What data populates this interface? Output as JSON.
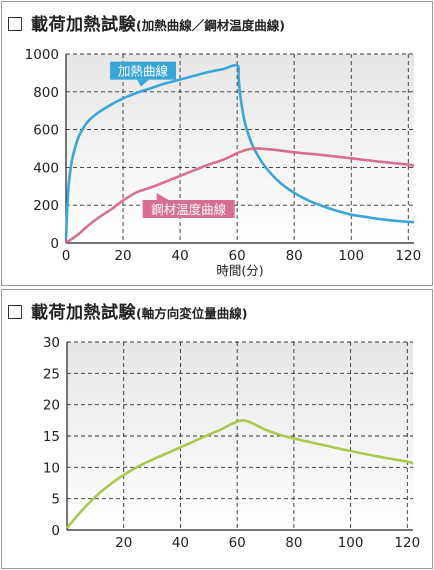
{
  "charts": [
    {
      "title_main": "載荷加熱試験",
      "title_sub": "(加熱曲線／鋼材温度曲線)"
    },
    {
      "title_main": "載荷加熱試験",
      "title_sub": "(軸方向変位量曲線)"
    }
  ],
  "chart_data": [
    {
      "type": "line",
      "title": "載荷加熱試験(加熱曲線／鋼材温度曲線)",
      "xlabel": "時間(分)",
      "ylabel": "",
      "xlim": [
        0,
        122
      ],
      "ylim": [
        0,
        1000
      ],
      "xticks": [
        0,
        20,
        40,
        60,
        80,
        100,
        120
      ],
      "yticks": [
        0,
        200,
        400,
        600,
        800,
        1000
      ],
      "grid": true,
      "series": [
        {
          "name": "加熱曲線",
          "color": "#3aa6d8",
          "x": [
            0,
            0.5,
            1,
            2,
            3,
            4,
            5,
            7,
            10,
            15,
            20,
            25,
            30,
            35,
            40,
            45,
            50,
            55,
            60,
            60.5,
            61,
            62,
            63,
            65,
            67,
            70,
            75,
            80,
            85,
            90,
            95,
            100,
            105,
            110,
            115,
            120,
            122
          ],
          "y": [
            20,
            200,
            320,
            430,
            495,
            545,
            580,
            630,
            675,
            725,
            765,
            795,
            820,
            845,
            865,
            885,
            905,
            920,
            940,
            880,
            790,
            690,
            620,
            530,
            470,
            400,
            320,
            265,
            225,
            195,
            170,
            150,
            138,
            127,
            118,
            112,
            110
          ]
        },
        {
          "name": "鋼材温度曲線",
          "color": "#d86e92",
          "x": [
            0,
            2,
            5,
            8,
            12,
            16,
            20,
            25,
            30,
            35,
            40,
            45,
            50,
            55,
            60,
            63,
            66,
            70,
            75,
            80,
            90,
            100,
            110,
            120,
            122
          ],
          "y": [
            5,
            20,
            55,
            95,
            140,
            180,
            225,
            270,
            295,
            325,
            355,
            385,
            415,
            440,
            475,
            492,
            500,
            497,
            490,
            480,
            465,
            448,
            430,
            415,
            408
          ]
        }
      ],
      "annotations": [
        {
          "text": "加熱曲線",
          "color": "#3aa6d8",
          "x": 27,
          "y": 912
        },
        {
          "text": "鋼材温度曲線",
          "color": "#d86e92",
          "x": 43,
          "y": 180
        }
      ]
    },
    {
      "type": "line",
      "title": "載荷加熱試験(軸方向変位量曲線)",
      "xlabel": "",
      "ylabel": "",
      "xlim": [
        0,
        122
      ],
      "ylim": [
        0,
        30
      ],
      "xticks": [
        20,
        40,
        60,
        80,
        100,
        120
      ],
      "xtick_labels": [
        "20",
        "40",
        "60",
        "80",
        "100",
        "120"
      ],
      "yticks": [
        0,
        5,
        10,
        15,
        20,
        25,
        30
      ],
      "grid": true,
      "series": [
        {
          "name": "",
          "color": "#a9c951",
          "x": [
            0,
            2,
            5,
            10,
            15,
            20,
            25,
            30,
            35,
            40,
            45,
            50,
            55,
            58,
            60,
            62,
            64,
            66,
            70,
            75,
            80,
            90,
            100,
            110,
            120,
            122
          ],
          "y": [
            0.3,
            1.4,
            3.0,
            5.3,
            7.2,
            8.8,
            10.1,
            11.2,
            12.2,
            13.2,
            14.2,
            15.2,
            16.2,
            16.9,
            17.3,
            17.5,
            17.3,
            16.9,
            16.0,
            15.2,
            14.6,
            13.6,
            12.6,
            11.7,
            10.9,
            10.6
          ]
        }
      ],
      "annotations": []
    }
  ]
}
